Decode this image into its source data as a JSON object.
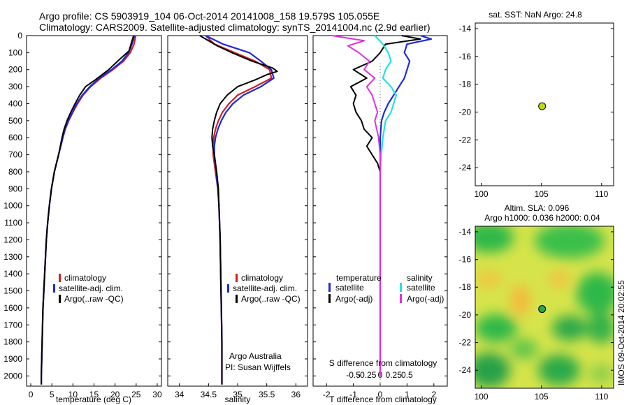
{
  "header": {
    "line1": "Argo profile: CS 5903919_104 06-Oct-2014 20141008_158 19.579S 105.055E",
    "line2": "Climatology: CARS2009. Satellite-adjusted climatology: synTS_20141004.nc (2.9d earlier)"
  },
  "colors": {
    "climatology": "#d21f1f",
    "satellite": "#1e2ad8",
    "argo": "#000000",
    "sat_salinity": "#22e0e8",
    "argo_salinity": "#e030e0",
    "marker": "#b9e000"
  },
  "depth_axis": {
    "ticks": [
      0,
      100,
      200,
      300,
      400,
      500,
      600,
      700,
      800,
      900,
      1000,
      1100,
      1200,
      1300,
      1400,
      1500,
      1600,
      1700,
      1800,
      1900,
      2000
    ],
    "range": [
      0,
      2060
    ]
  },
  "legend": {
    "items": [
      "climatology",
      "satellite-adj. clim.",
      "Argo(..raw -QC)"
    ]
  },
  "diff_legend": {
    "temperature_title": "temperature",
    "salinity_title": "salinity",
    "t_sat": "satellite",
    "t_argo": "Argo(-adj)",
    "s_sat": "satellite",
    "s_argo": "Argo(-adj)"
  },
  "credit": {
    "line1": "Argo Australia",
    "line2": "PI: Susan Wijffels"
  },
  "map_sst": {
    "title": "sat. SST: NaN Argo: 24.8",
    "yticks": [
      "-14",
      "-16",
      "-18",
      "-20",
      "-22",
      "-24"
    ],
    "xticks": [
      "100",
      "105",
      "110"
    ]
  },
  "map_sla": {
    "title1": "Altim. SLA: 0.096",
    "title2": "Argo h1000: 0.036 h2000: 0.04",
    "yticks": [
      "-14",
      "-16",
      "-18",
      "-20",
      "-22",
      "-24"
    ],
    "xticks": [
      "100",
      "105",
      "110"
    ]
  },
  "footer": {
    "imos": "IMOS 09-Oct-2014 20:02:55"
  },
  "chart_data": [
    {
      "type": "line",
      "title": "temperature profile",
      "xlabel": "temperature (deg C)",
      "ylabel": "depth",
      "xlim": [
        -1,
        31
      ],
      "ylim": [
        2060,
        0
      ],
      "xticks": [
        0,
        5,
        10,
        15,
        20,
        25,
        30
      ],
      "series": [
        {
          "name": "climatology",
          "depth": [
            0,
            50,
            100,
            150,
            200,
            250,
            300,
            350,
            400,
            450,
            500,
            550,
            600,
            650,
            700,
            800,
            900,
            1000,
            1100,
            1200,
            1300,
            1400,
            1500,
            1600,
            1700,
            1800,
            1900,
            2000,
            2050
          ],
          "values": [
            24.9,
            24.5,
            23.6,
            22.0,
            19.5,
            16.6,
            14.2,
            12.4,
            11.1,
            10.0,
            9.0,
            8.2,
            7.6,
            7.1,
            6.6,
            5.6,
            4.9,
            4.4,
            4.0,
            3.7,
            3.5,
            3.3,
            3.1,
            2.9,
            2.8,
            2.7,
            2.6,
            2.5,
            2.5
          ]
        },
        {
          "name": "satellite-adj. clim.",
          "depth": [
            0,
            50,
            100,
            150,
            200,
            250,
            300,
            350,
            400,
            450,
            500,
            550,
            600,
            650,
            700,
            800,
            900,
            1000,
            1100,
            1200,
            1300,
            1400,
            1500,
            1600,
            1700,
            1800,
            1900,
            2000,
            2050
          ],
          "values": [
            24.6,
            24.0,
            23.2,
            21.6,
            19.2,
            16.3,
            14.0,
            12.2,
            10.9,
            9.9,
            8.9,
            8.1,
            7.6,
            7.1,
            6.6,
            5.6,
            4.9,
            4.4,
            4.0,
            3.7,
            3.5,
            3.3,
            3.1,
            2.9,
            2.8,
            2.7,
            2.6,
            2.5,
            2.5
          ]
        },
        {
          "name": "Argo(..raw -QC)",
          "depth": [
            0,
            40,
            90,
            150,
            200,
            260,
            300,
            350,
            400,
            450,
            500,
            550,
            600,
            650,
            700,
            800,
            900,
            1000,
            1100,
            1200,
            1300,
            1400,
            1500,
            1600,
            1700,
            1800,
            1900,
            2000,
            2050
          ],
          "values": [
            24.4,
            23.9,
            23.3,
            20.6,
            18.5,
            15.3,
            13.0,
            11.6,
            10.5,
            9.5,
            8.6,
            7.9,
            7.4,
            7.0,
            6.6,
            5.6,
            4.9,
            4.4,
            4.0,
            3.7,
            3.5,
            3.3,
            3.1,
            2.9,
            2.8,
            2.7,
            2.6,
            2.5,
            2.5
          ]
        }
      ]
    },
    {
      "type": "line",
      "title": "salinity profile",
      "xlabel": "salinity",
      "ylabel": "depth",
      "xlim": [
        33.8,
        36.2
      ],
      "ylim": [
        2060,
        0
      ],
      "xticks": [
        34,
        34.5,
        35,
        35.5,
        36
      ],
      "series": [
        {
          "name": "climatology",
          "depth": [
            0,
            50,
            100,
            150,
            200,
            250,
            300,
            350,
            400,
            450,
            500,
            550,
            600,
            650,
            700,
            800,
            900,
            1000,
            1200,
            1400,
            1600,
            1800,
            2000,
            2050
          ],
          "values": [
            34.45,
            34.6,
            34.95,
            35.3,
            35.55,
            35.58,
            35.3,
            35.0,
            34.85,
            34.74,
            34.67,
            34.62,
            34.59,
            34.58,
            34.58,
            34.62,
            34.66,
            34.68,
            34.7,
            34.71,
            34.72,
            34.73,
            34.73,
            34.73
          ]
        },
        {
          "name": "satellite-adj. clim.",
          "depth": [
            0,
            50,
            100,
            150,
            200,
            250,
            300,
            350,
            400,
            450,
            500,
            550,
            600,
            650,
            700,
            800,
            900,
            1000,
            1200,
            1400,
            1600,
            1800,
            2000,
            2050
          ],
          "values": [
            34.45,
            34.75,
            35.2,
            35.4,
            35.58,
            35.62,
            35.4,
            35.1,
            34.92,
            34.8,
            34.72,
            34.66,
            34.62,
            34.6,
            34.6,
            34.63,
            34.66,
            34.68,
            34.7,
            34.71,
            34.72,
            34.73,
            34.73,
            34.73
          ]
        },
        {
          "name": "Argo(..raw -QC)",
          "depth": [
            0,
            30,
            60,
            100,
            150,
            190,
            210,
            230,
            260,
            300,
            350,
            400,
            450,
            500,
            550,
            600,
            650,
            700,
            800,
            900,
            1000,
            1200,
            1400,
            1600,
            1800,
            2000,
            2050
          ],
          "values": [
            34.35,
            34.5,
            34.65,
            34.9,
            35.25,
            35.6,
            35.68,
            35.5,
            35.3,
            35.0,
            34.82,
            34.7,
            34.64,
            34.6,
            34.57,
            34.56,
            34.57,
            34.6,
            34.64,
            34.67,
            34.68,
            34.7,
            34.71,
            34.72,
            34.73,
            34.73,
            34.73
          ]
        }
      ]
    },
    {
      "type": "line",
      "title": "difference from climatology",
      "xlabel": "T difference from climatology",
      "x2label": "S difference from climatology",
      "xlim": [
        -2.5,
        2.5
      ],
      "ylim": [
        2060,
        0
      ],
      "xticks": [
        -2,
        -1,
        0,
        1,
        2
      ],
      "x2ticks": [
        -0.5,
        -0.25,
        0,
        0.25,
        0.5
      ],
      "series": [
        {
          "name": "temperature satellite",
          "depth": [
            0,
            20,
            50,
            100,
            150,
            200,
            250,
            300,
            350,
            400,
            450,
            500,
            600,
            700,
            800,
            900,
            1200,
            1600,
            2000
          ],
          "values": [
            1.5,
            1.9,
            1.0,
            0.9,
            1.1,
            1.0,
            0.9,
            0.7,
            0.5,
            0.3,
            0.15,
            0.05,
            0.0,
            0.0,
            0.0,
            0.0,
            0.0,
            0.0,
            0.0
          ]
        },
        {
          "name": "temperature Argo(-adj)",
          "depth": [
            0,
            20,
            50,
            100,
            150,
            200,
            250,
            300,
            350,
            400,
            450,
            500,
            550,
            600,
            650,
            700,
            750,
            800,
            900,
            1200,
            1600,
            2000
          ],
          "values": [
            0.8,
            1.5,
            0.2,
            0.0,
            -0.3,
            -1.0,
            -0.5,
            -1.1,
            -0.9,
            -1.0,
            -0.9,
            -0.7,
            -0.6,
            -0.3,
            -0.5,
            -0.3,
            -0.1,
            0.0,
            0.0,
            0.0,
            0.0,
            0.0
          ]
        },
        {
          "name": "salinity satellite",
          "depth": [
            0,
            50,
            100,
            150,
            200,
            250,
            300,
            350,
            400,
            450,
            500,
            600,
            700,
            800,
            1000,
            1400,
            2000
          ],
          "values": [
            -0.1,
            0.05,
            0.15,
            0.2,
            0.1,
            0.05,
            0.2,
            0.3,
            0.25,
            0.2,
            0.1,
            0.05,
            0.02,
            0.0,
            0.0,
            0.0,
            0.0
          ]
        },
        {
          "name": "salinity Argo(-adj)",
          "depth": [
            0,
            30,
            60,
            100,
            150,
            200,
            250,
            300,
            350,
            400,
            450,
            500,
            600,
            700,
            800,
            1000,
            1400,
            2000
          ],
          "values": [
            -0.9,
            -0.3,
            -0.6,
            -0.4,
            -0.2,
            -0.3,
            -0.1,
            -0.25,
            -0.15,
            -0.1,
            -0.05,
            -0.1,
            -0.03,
            0.0,
            0.0,
            0.0,
            0.0,
            0.0
          ]
        }
      ]
    },
    {
      "type": "scatter",
      "title": "sat. SST map",
      "xlim": [
        99.5,
        111
      ],
      "ylim": [
        -25.3,
        -13.6
      ],
      "points": [
        {
          "lon": 105.055,
          "lat": -19.579
        }
      ]
    },
    {
      "type": "heatmap",
      "title": "Altim. SLA map",
      "xlim": [
        99.5,
        111
      ],
      "ylim": [
        -25.3,
        -13.6
      ],
      "points": [
        {
          "lon": 105.055,
          "lat": -19.579
        }
      ]
    }
  ]
}
